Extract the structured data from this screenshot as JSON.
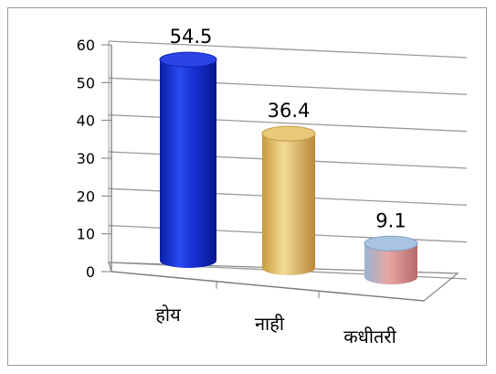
{
  "chart_data": {
    "type": "bar",
    "style": "3d-cylinder",
    "categories": [
      "होय",
      "नाही",
      "कधीतरी"
    ],
    "values": [
      54.5,
      36.4,
      9.1
    ],
    "data_labels": [
      "54.5",
      "36.4",
      "9.1"
    ],
    "y_ticks": [
      "0",
      "10",
      "20",
      "30",
      "40",
      "50",
      "60"
    ],
    "ylim": [
      0,
      60
    ],
    "grid": true,
    "legend": "none",
    "title": "",
    "xlabel": "",
    "ylabel": "",
    "colors": [
      "#1c36d8",
      "#d4b057",
      "#c8706e"
    ]
  }
}
